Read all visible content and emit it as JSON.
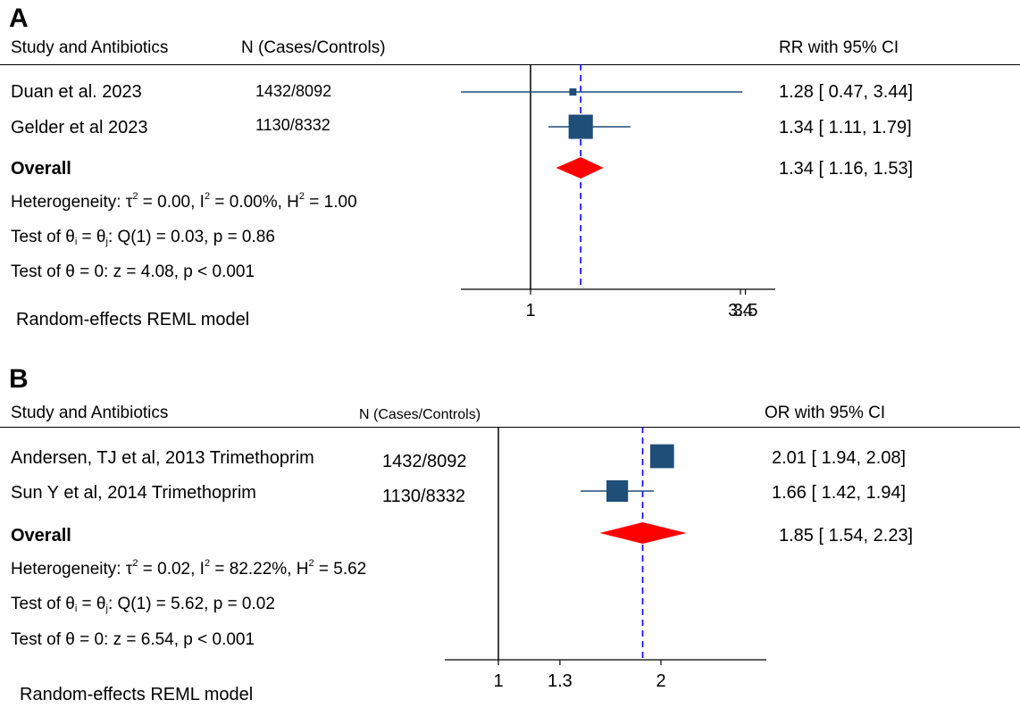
{
  "colors": {
    "study": "#1f4e79",
    "overall": "#ff0000",
    "overall_line": "#0000ff",
    "axis": "#000000"
  },
  "panels": [
    {
      "letter": "A",
      "col_study": "Study and Antibiotics",
      "col_n": "N (Cases/Controls)",
      "col_effect": "RR with 95% CI",
      "studies": [
        {
          "name": "Duan et al. 2023",
          "n": "1432/8092",
          "ci_text": "1.28 [ 0.47,  3.44]"
        },
        {
          "name": "Gelder et al 2023",
          "n": "1130/8332",
          "ci_text": "1.34 [ 1.11,  1.79]"
        }
      ],
      "overall_label": "Overall",
      "overall_ci_text": "1.34 [ 1.16,  1.53]",
      "het_prefix": "Heterogeneity: τ",
      "het_mid1": " = 0.00, I",
      "het_mid2": " = 0.00%, H",
      "het_end": " = 1.00",
      "sq": "2",
      "q_prefix": "Test of θ",
      "q_sub_i": "i",
      "q_mid": " = θ",
      "q_sub_j": "j",
      "q_end": ": Q(1) = 0.03, p = 0.86",
      "z_test": "Test of θ = 0: z = 4.08, p < 0.001",
      "model": "Random-effects REML model"
    },
    {
      "letter": "B",
      "col_study": "Study and Antibiotics",
      "col_n": "N (Cases/Controls)",
      "col_effect": "OR with 95% CI",
      "studies": [
        {
          "name": "Andersen, TJ et al, 2013 Trimethoprim",
          "n": "1432/8092",
          "ci_text": "2.01 [ 1.94,  2.08]"
        },
        {
          "name": "Sun Y et al, 2014 Trimethoprim",
          "n": "1130/8332",
          "ci_text": "1.66 [ 1.42,  1.94]"
        }
      ],
      "overall_label": "Overall",
      "overall_ci_text": "1.85 [ 1.54,  2.23]",
      "het_prefix": "Heterogeneity: τ",
      "het_mid1": " = 0.02, I",
      "het_mid2": " = 82.22%, H",
      "het_end": " = 5.62",
      "sq": "2",
      "q_prefix": "Test of θ",
      "q_sub_i": "i",
      "q_mid": " = θ",
      "q_sub_j": "j",
      "q_end": ": Q(1) = 5.62, p = 0.02",
      "z_test": "Test of θ = 0: z = 6.54, p < 0.001",
      "model": "Random-effects REML model"
    }
  ],
  "chart_data": [
    {
      "type": "forest",
      "scale": "log",
      "effect_measure": "RR",
      "ticks": [
        "1",
        "3.4",
        "3.5"
      ],
      "tick_values": [
        1,
        3.4,
        3.5
      ],
      "null_value": 1,
      "series": [
        {
          "name": "Duan et al. 2023",
          "estimate": 1.28,
          "lower": 0.47,
          "upper": 3.44,
          "weight": 0.06
        },
        {
          "name": "Gelder et al 2023",
          "estimate": 1.34,
          "lower": 1.11,
          "upper": 1.79,
          "weight": 0.94
        }
      ],
      "overall": {
        "estimate": 1.34,
        "lower": 1.16,
        "upper": 1.53
      }
    },
    {
      "type": "forest",
      "scale": "log",
      "effect_measure": "OR",
      "ticks": [
        "1",
        "1.3",
        "2"
      ],
      "tick_values": [
        1,
        1.3,
        2
      ],
      "null_value": 1,
      "series": [
        {
          "name": "Andersen, TJ et al, 2013 Trimethoprim",
          "estimate": 2.01,
          "lower": 1.94,
          "upper": 2.08,
          "weight": 0.55
        },
        {
          "name": "Sun Y et al, 2014 Trimethoprim",
          "estimate": 1.66,
          "lower": 1.42,
          "upper": 1.94,
          "weight": 0.45
        }
      ],
      "overall": {
        "estimate": 1.85,
        "lower": 1.54,
        "upper": 2.23
      }
    }
  ]
}
